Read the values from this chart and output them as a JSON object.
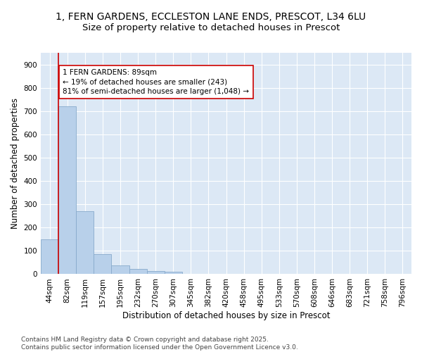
{
  "title_line1": "1, FERN GARDENS, ECCLESTON LANE ENDS, PRESCOT, L34 6LU",
  "title_line2": "Size of property relative to detached houses in Prescot",
  "xlabel": "Distribution of detached houses by size in Prescot",
  "ylabel": "Number of detached properties",
  "categories": [
    "44sqm",
    "82sqm",
    "119sqm",
    "157sqm",
    "195sqm",
    "232sqm",
    "270sqm",
    "307sqm",
    "345sqm",
    "382sqm",
    "420sqm",
    "458sqm",
    "495sqm",
    "533sqm",
    "570sqm",
    "608sqm",
    "646sqm",
    "683sqm",
    "721sqm",
    "758sqm",
    "796sqm"
  ],
  "values": [
    150,
    720,
    270,
    85,
    37,
    22,
    12,
    10,
    0,
    0,
    0,
    0,
    0,
    0,
    0,
    0,
    0,
    0,
    0,
    0,
    0
  ],
  "bar_color": "#b8d0ea",
  "bar_edge_color": "#88aacc",
  "vline_color": "#cc0000",
  "annotation_text": "1 FERN GARDENS: 89sqm\n← 19% of detached houses are smaller (243)\n81% of semi-detached houses are larger (1,048) →",
  "annotation_box_color": "#ffffff",
  "annotation_box_edge_color": "#cc0000",
  "ylim": [
    0,
    950
  ],
  "yticks": [
    0,
    100,
    200,
    300,
    400,
    500,
    600,
    700,
    800,
    900
  ],
  "background_color": "#dce8f5",
  "grid_color": "#ffffff",
  "footer": "Contains HM Land Registry data © Crown copyright and database right 2025.\nContains public sector information licensed under the Open Government Licence v3.0.",
  "title_fontsize": 10,
  "subtitle_fontsize": 9.5,
  "label_fontsize": 8.5,
  "tick_fontsize": 7.5,
  "annot_fontsize": 7.5,
  "footer_fontsize": 6.5
}
